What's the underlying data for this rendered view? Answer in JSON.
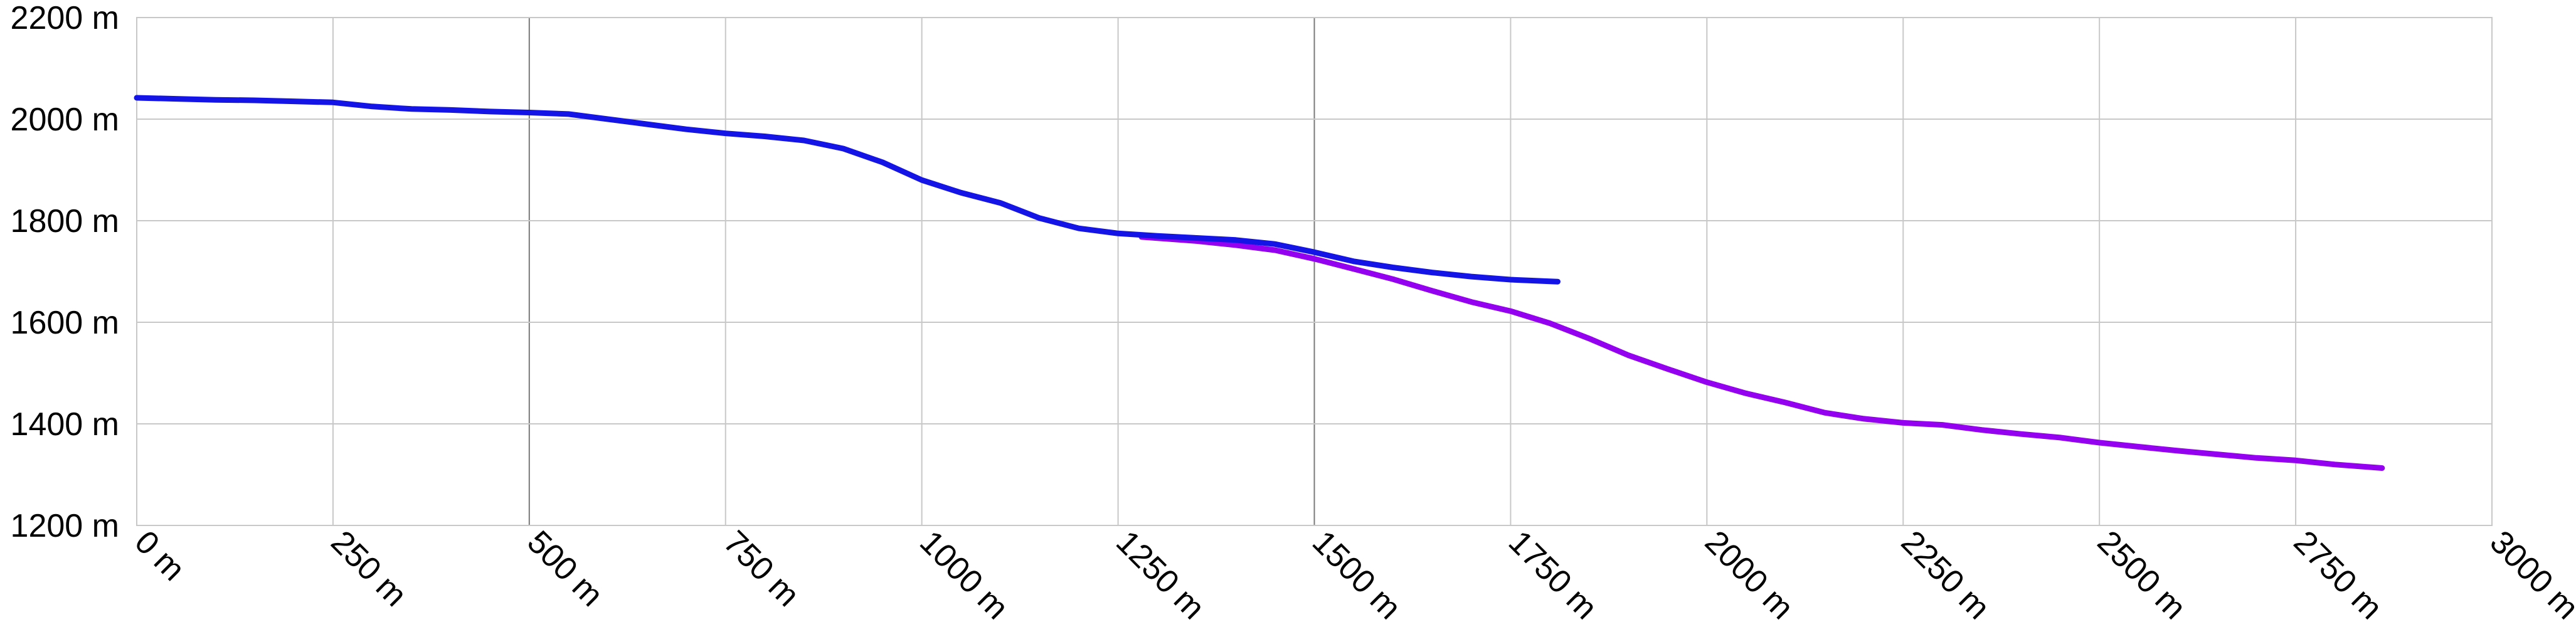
{
  "chart_data": {
    "type": "line",
    "title": "",
    "xlabel": "",
    "ylabel": "",
    "xlim": [
      0,
      3000
    ],
    "ylim": [
      1200,
      2200
    ],
    "grid": true,
    "legend": "none",
    "x_ticks": [
      0,
      250,
      500,
      750,
      1000,
      1250,
      1500,
      1750,
      2000,
      2250,
      2500,
      2750,
      3000
    ],
    "x_tick_labels": [
      "0 m",
      "250 m",
      "500 m",
      "750 m",
      "1000 m",
      "1250 m",
      "1500 m",
      "1750 m",
      "2000 m",
      "2250 m",
      "2500 m",
      "2750 m",
      "3000 m"
    ],
    "y_ticks": [
      1200,
      1400,
      1600,
      1800,
      2000,
      2200
    ],
    "y_tick_labels": [
      "1200 m",
      "1400 m",
      "1600 m",
      "1800 m",
      "2000 m",
      "2200 m"
    ],
    "series": [
      {
        "color": "#9400f0",
        "points": [
          [
            1280,
            1768
          ],
          [
            1350,
            1760
          ],
          [
            1400,
            1752
          ],
          [
            1450,
            1742
          ],
          [
            1500,
            1725
          ],
          [
            1550,
            1705
          ],
          [
            1600,
            1685
          ],
          [
            1650,
            1662
          ],
          [
            1700,
            1640
          ],
          [
            1750,
            1622
          ],
          [
            1800,
            1598
          ],
          [
            1850,
            1568
          ],
          [
            1900,
            1535
          ],
          [
            1950,
            1508
          ],
          [
            2000,
            1482
          ],
          [
            2050,
            1460
          ],
          [
            2100,
            1442
          ],
          [
            2150,
            1422
          ],
          [
            2200,
            1410
          ],
          [
            2250,
            1402
          ],
          [
            2300,
            1398
          ],
          [
            2350,
            1388
          ],
          [
            2400,
            1380
          ],
          [
            2450,
            1373
          ],
          [
            2500,
            1363
          ],
          [
            2550,
            1355
          ],
          [
            2600,
            1347
          ],
          [
            2650,
            1340
          ],
          [
            2700,
            1333
          ],
          [
            2750,
            1328
          ],
          [
            2800,
            1320
          ],
          [
            2860,
            1313
          ]
        ]
      },
      {
        "color": "#1414e6",
        "points": [
          [
            0,
            2042
          ],
          [
            50,
            2040
          ],
          [
            100,
            2038
          ],
          [
            150,
            2037
          ],
          [
            200,
            2035
          ],
          [
            250,
            2033
          ],
          [
            300,
            2025
          ],
          [
            350,
            2020
          ],
          [
            400,
            2018
          ],
          [
            450,
            2015
          ],
          [
            500,
            2013
          ],
          [
            550,
            2010
          ],
          [
            600,
            2000
          ],
          [
            650,
            1990
          ],
          [
            700,
            1980
          ],
          [
            750,
            1972
          ],
          [
            800,
            1966
          ],
          [
            850,
            1958
          ],
          [
            900,
            1942
          ],
          [
            950,
            1915
          ],
          [
            1000,
            1880
          ],
          [
            1050,
            1855
          ],
          [
            1100,
            1835
          ],
          [
            1150,
            1805
          ],
          [
            1200,
            1785
          ],
          [
            1250,
            1775
          ],
          [
            1300,
            1770
          ],
          [
            1350,
            1766
          ],
          [
            1400,
            1762
          ],
          [
            1450,
            1754
          ],
          [
            1500,
            1738
          ],
          [
            1550,
            1720
          ],
          [
            1600,
            1708
          ],
          [
            1650,
            1698
          ],
          [
            1700,
            1690
          ],
          [
            1750,
            1684
          ],
          [
            1810,
            1680
          ]
        ]
      }
    ]
  }
}
